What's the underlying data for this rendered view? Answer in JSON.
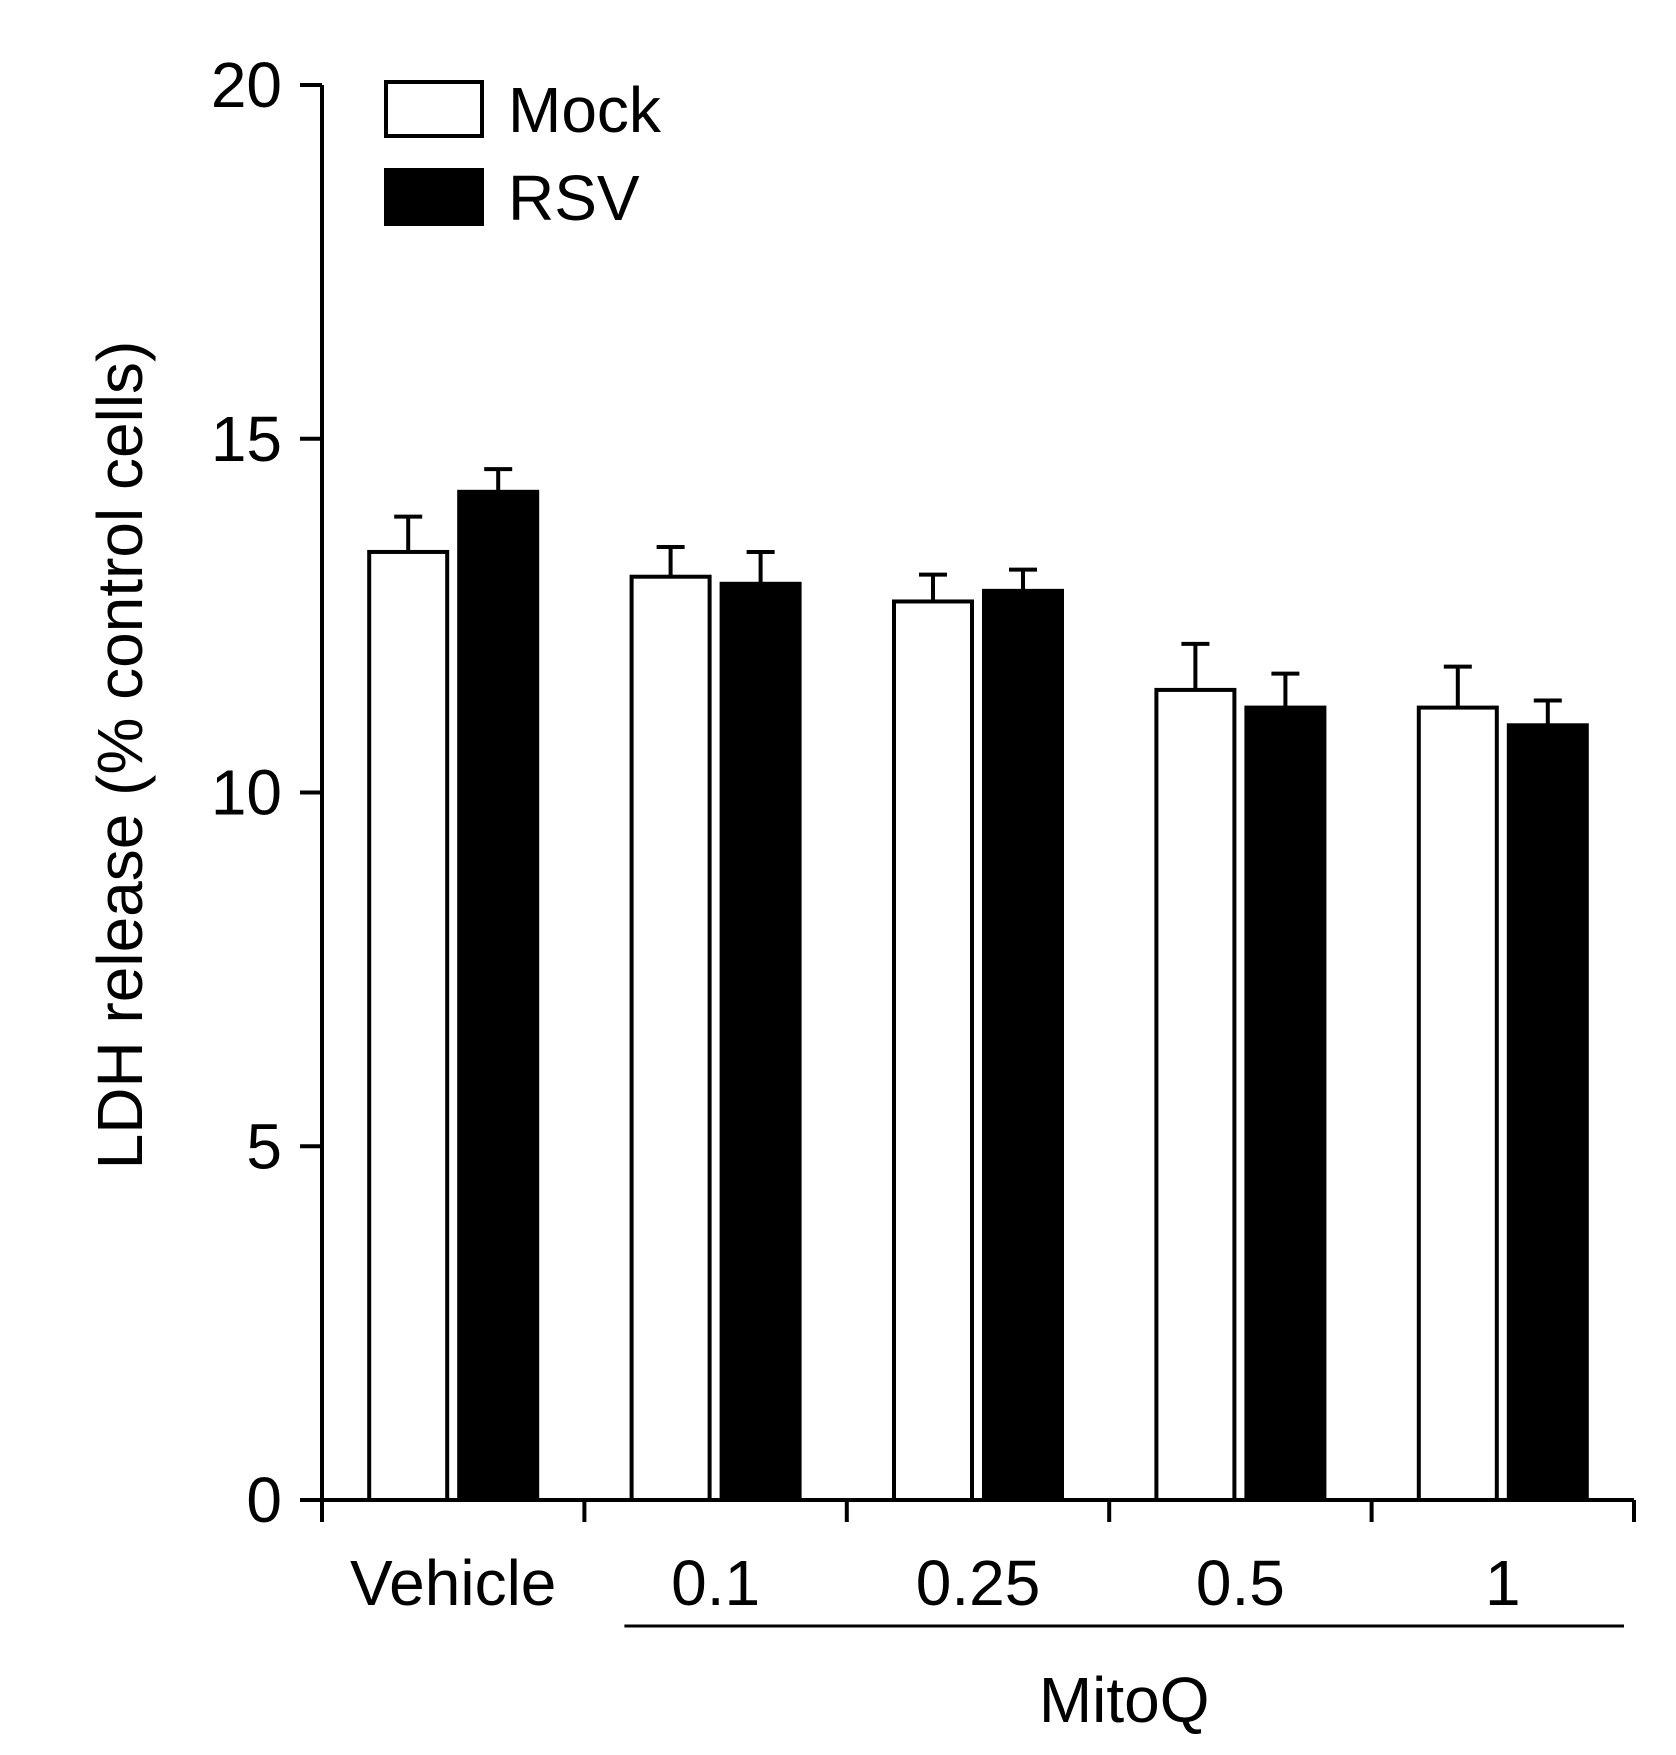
{
  "chart_data": {
    "type": "bar",
    "title": "",
    "xlabel": "",
    "ylabel": "LDH release (% control cells)",
    "ylim": [
      0,
      20
    ],
    "yticks": [
      0,
      5,
      10,
      15,
      20
    ],
    "grid": false,
    "legend_position": "top-left",
    "categories": [
      "Vehicle",
      "0.1",
      "0.25",
      "0.5",
      "1"
    ],
    "group_label": "MitoQ",
    "group_label_spans": [
      "0.1",
      "1"
    ],
    "series": [
      {
        "name": "Mock",
        "values": [
          13.4,
          13.05,
          12.7,
          11.45,
          11.2
        ],
        "errors": [
          0.5,
          0.42,
          0.38,
          0.65,
          0.58
        ],
        "fill": "#ffffff",
        "stroke": "#000000"
      },
      {
        "name": "RSV",
        "values": [
          14.25,
          12.95,
          12.85,
          11.2,
          10.95
        ],
        "errors": [
          0.32,
          0.45,
          0.3,
          0.48,
          0.35
        ],
        "fill": "#000000",
        "stroke": "#000000"
      }
    ]
  }
}
